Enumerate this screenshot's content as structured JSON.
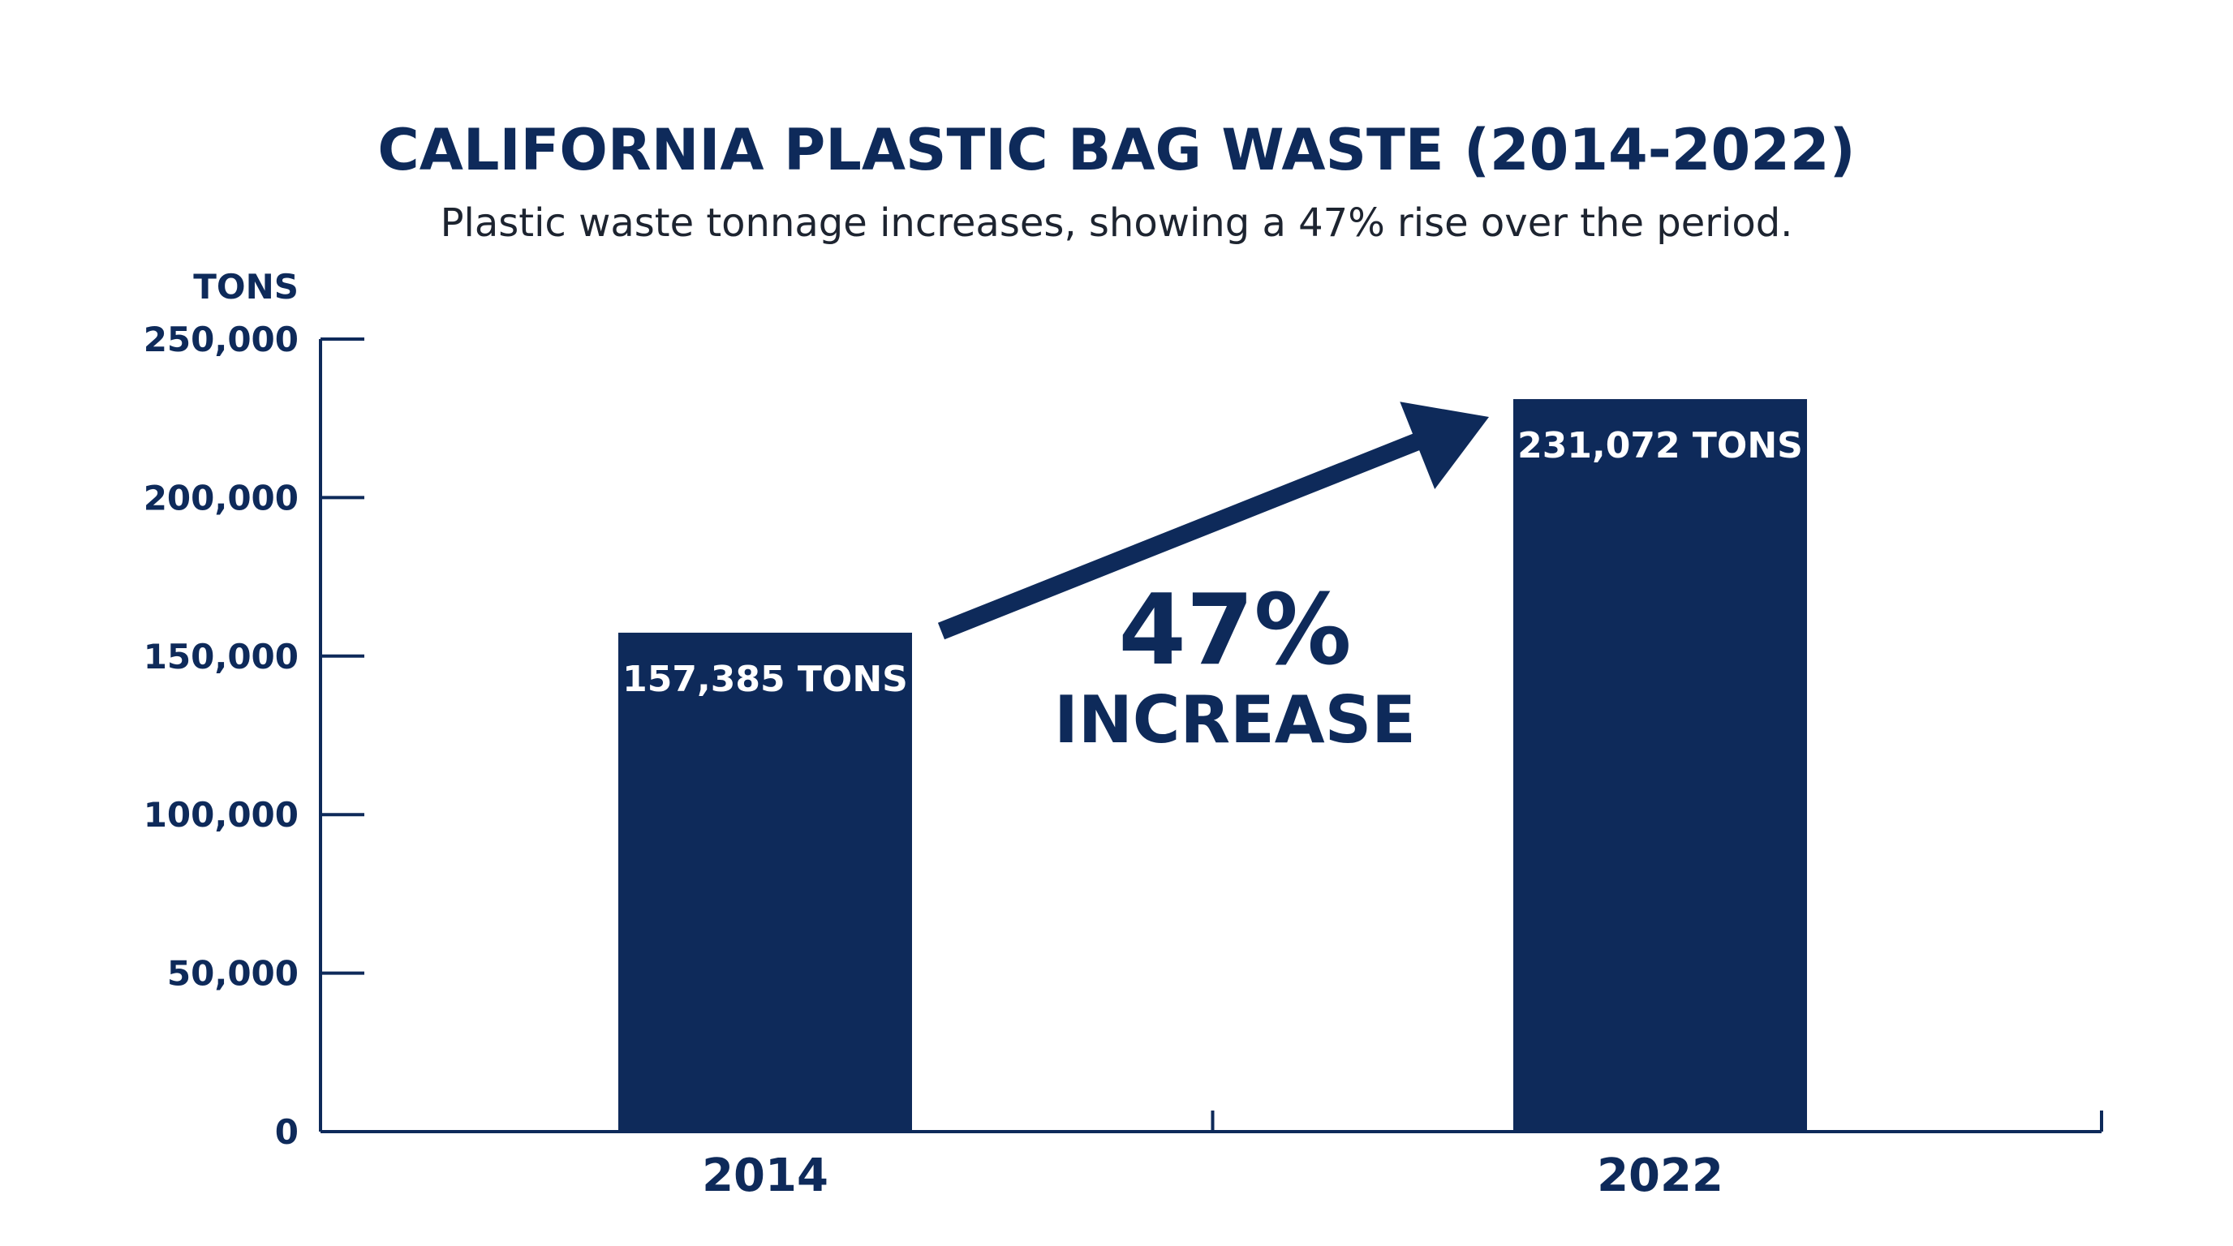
{
  "title": "CALIFORNIA PLASTIC BAG WASTE (2014-2022)",
  "subtitle": "Plastic waste tonnage increases, showing a 47% rise over the period.",
  "colors": {
    "bar": "#0e2a5a",
    "axis": "#0e2a5a",
    "text": "#0e2a5a",
    "bar_label": "#ffffff"
  },
  "chart_data": {
    "type": "bar",
    "title": "CALIFORNIA PLASTIC BAG WASTE (2014-2022)",
    "subtitle": "Plastic waste tonnage increases, showing a 47% rise over the period.",
    "ylabel": "TONS",
    "xlabel": "",
    "categories": [
      "2014",
      "2022"
    ],
    "values": [
      157385,
      231072
    ],
    "data_labels": [
      "157,385 TONS",
      "231,072 TONS"
    ],
    "ylim": [
      0,
      250000
    ],
    "yticks": [
      0,
      50000,
      100000,
      150000,
      200000,
      250000
    ],
    "ytick_labels": [
      "0",
      "50,000",
      "100,000",
      "150,000",
      "200,000",
      "250,000"
    ],
    "grid": false,
    "legend": "none",
    "annotation": {
      "percent": "47%",
      "text": "INCREASE",
      "arrow": "from 2014 bar toward 2022 bar"
    }
  }
}
